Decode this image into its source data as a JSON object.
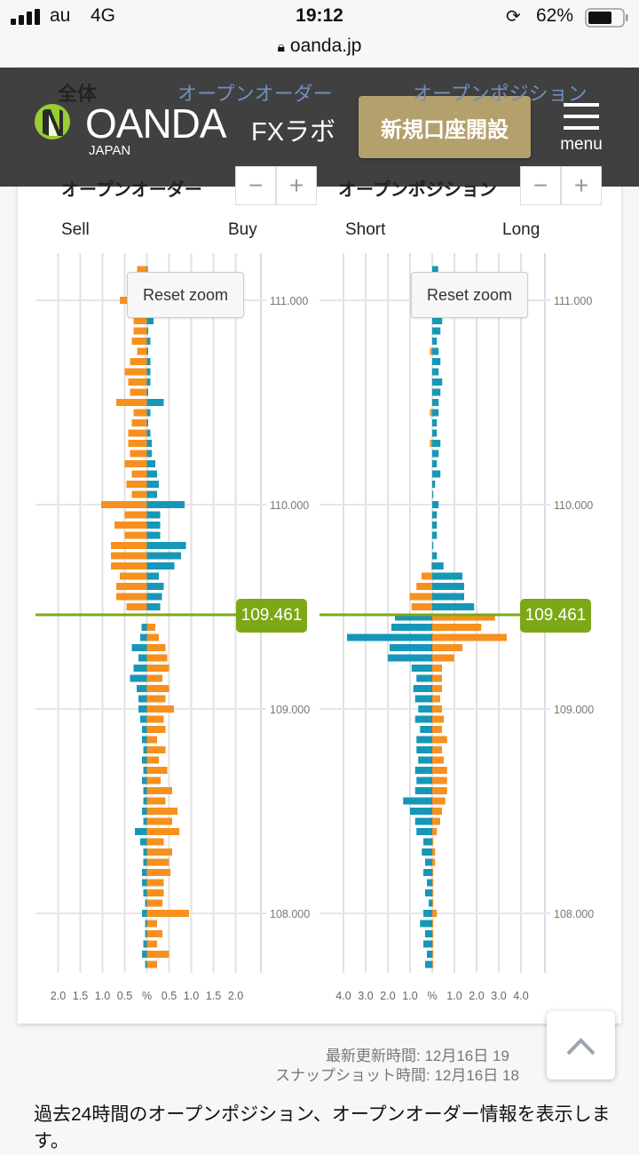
{
  "status_bar": {
    "carrier": "au",
    "network": "4G",
    "time": "19:12",
    "battery": "62%",
    "url": "oanda.jp"
  },
  "tabs": [
    "全体",
    "オープンオーダー",
    "オープンポジション"
  ],
  "header": {
    "logo": "OANDA",
    "logo_sub": "JAPAN",
    "site": "FXラボ",
    "signup_label": "新規口座開設",
    "menu_label": "menu"
  },
  "sections": {
    "orders": {
      "title": "オープンオーダー",
      "left_label": "Sell",
      "right_label": "Buy",
      "zoom_out": "−",
      "zoom_in": "+",
      "reset": "Reset zoom"
    },
    "positions": {
      "title": "オープンポジション",
      "left_label": "Short",
      "right_label": "Long",
      "zoom_out": "−",
      "zoom_in": "+",
      "reset": "Reset zoom"
    }
  },
  "current_price": "109.461",
  "colors": {
    "orange": "#f7901e",
    "blue": "#1797b7",
    "price_line": "#7ca817"
  },
  "chart_data": [
    {
      "type": "bar",
      "orientation": "horizontal-diverging",
      "current_price": 109.461,
      "ylim": [
        107.75,
        111.15
      ],
      "yticks": [
        111.0,
        110.0,
        109.0,
        108.0
      ],
      "ytick_labels": [
        "111.000",
        "110.000",
        "109.000",
        "108.000"
      ],
      "xlim": [
        -2.0,
        2.0
      ],
      "xtick_labels": [
        "2.0",
        "1.5",
        "1.0",
        "0.5",
        "%",
        "0.5",
        "1.0",
        "1.5",
        "2.0"
      ],
      "grid": true,
      "prices": [
        111.15,
        111.1,
        111.05,
        111.0,
        110.95,
        110.9,
        110.85,
        110.8,
        110.75,
        110.7,
        110.65,
        110.6,
        110.55,
        110.5,
        110.45,
        110.4,
        110.35,
        110.3,
        110.25,
        110.2,
        110.15,
        110.1,
        110.05,
        110.0,
        109.95,
        109.9,
        109.85,
        109.8,
        109.75,
        109.7,
        109.65,
        109.6,
        109.55,
        109.5,
        109.45,
        109.4,
        109.35,
        109.3,
        109.25,
        109.2,
        109.15,
        109.1,
        109.05,
        109.0,
        108.95,
        108.9,
        108.85,
        108.8,
        108.75,
        108.7,
        108.65,
        108.6,
        108.55,
        108.5,
        108.45,
        108.4,
        108.35,
        108.3,
        108.25,
        108.2,
        108.15,
        108.1,
        108.05,
        108.0,
        107.95,
        107.9,
        107.85,
        107.8,
        107.75
      ],
      "series": [
        {
          "name": "Sell",
          "side": "left",
          "values": [
            0.22,
            0.2,
            0.15,
            0.61,
            0.3,
            0.3,
            0.3,
            0.34,
            0.22,
            0.38,
            0.5,
            0.42,
            0.38,
            0.69,
            0.3,
            0.34,
            0.42,
            0.42,
            0.38,
            0.5,
            0.34,
            0.46,
            0.34,
            1.03,
            0.5,
            0.73,
            0.5,
            0.81,
            0.81,
            0.81,
            0.61,
            0.69,
            0.69,
            0.46,
            0,
            0.12,
            0.15,
            0.34,
            0.19,
            0.3,
            0.38,
            0.23,
            0.19,
            0.19,
            0.15,
            0.11,
            0.11,
            0.08,
            0.11,
            0.08,
            0.11,
            0.08,
            0.08,
            0.11,
            0.08,
            0.27,
            0.15,
            0.08,
            0.08,
            0.11,
            0.11,
            0.08,
            0.04,
            0.11,
            0.04,
            0.04,
            0.08,
            0.11,
            0.04
          ]
        },
        {
          "name": "Buy",
          "side": "right",
          "values": [
            0.02,
            0.03,
            0.03,
            0.03,
            0.05,
            0.15,
            0.03,
            0.08,
            0.03,
            0.08,
            0.08,
            0.08,
            0.03,
            0.38,
            0.08,
            0.03,
            0.08,
            0.11,
            0.11,
            0.19,
            0.23,
            0.27,
            0.23,
            0.85,
            0.3,
            0.3,
            0.3,
            0.88,
            0.77,
            0.62,
            0.27,
            0.38,
            0.34,
            0.3,
            0,
            0.19,
            0.27,
            0.42,
            0.46,
            0.5,
            0.35,
            0.5,
            0.42,
            0.61,
            0.38,
            0.42,
            0.23,
            0.42,
            0.27,
            0.46,
            0.31,
            0.57,
            0.42,
            0.69,
            0.57,
            0.73,
            0.38,
            0.57,
            0.5,
            0.53,
            0.38,
            0.38,
            0.35,
            0.95,
            0.23,
            0.35,
            0.23,
            0.5,
            0.23
          ]
        }
      ]
    },
    {
      "type": "bar",
      "orientation": "horizontal-diverging",
      "current_price": 109.461,
      "ylim": [
        107.75,
        111.15
      ],
      "yticks": [
        111.0,
        110.0,
        109.0,
        108.0
      ],
      "ytick_labels": [
        "111.000",
        "110.000",
        "109.000",
        "108.000"
      ],
      "xlim": [
        -4.0,
        4.0
      ],
      "xtick_labels": [
        "4.0",
        "3.0",
        "2.0",
        "1.0",
        "%",
        "1.0",
        "2.0",
        "3.0",
        "4.0"
      ],
      "grid": true,
      "prices": [
        111.15,
        111.1,
        111.05,
        111.0,
        110.95,
        110.9,
        110.85,
        110.8,
        110.75,
        110.7,
        110.65,
        110.6,
        110.55,
        110.5,
        110.45,
        110.4,
        110.35,
        110.3,
        110.25,
        110.2,
        110.15,
        110.1,
        110.05,
        110.0,
        109.95,
        109.9,
        109.85,
        109.8,
        109.75,
        109.7,
        109.65,
        109.6,
        109.55,
        109.5,
        109.45,
        109.4,
        109.35,
        109.3,
        109.25,
        109.2,
        109.15,
        109.1,
        109.05,
        109.0,
        108.95,
        108.9,
        108.85,
        108.8,
        108.75,
        108.7,
        108.65,
        108.6,
        108.55,
        108.5,
        108.45,
        108.4,
        108.35,
        108.3,
        108.25,
        108.2,
        108.15,
        108.1,
        108.05,
        108.0,
        107.95,
        107.9,
        107.85,
        107.8,
        107.75
      ],
      "series": [
        {
          "name": "Short",
          "side": "left",
          "values": [
            0,
            0,
            0,
            0,
            0,
            0,
            0,
            0,
            0.1,
            0,
            0,
            0,
            0,
            0,
            0.1,
            0,
            0,
            0.1,
            0,
            0,
            0,
            0,
            0,
            0,
            0,
            0,
            0,
            0,
            0,
            0.04,
            0.48,
            0.71,
            1.01,
            0.93,
            1.68,
            1.84,
            3.84,
            1.92,
            2.0,
            0.93,
            0.71,
            0.85,
            0.77,
            0.63,
            0.77,
            0.55,
            0.71,
            0.71,
            0.63,
            0.77,
            0.71,
            0.77,
            1.31,
            1.0,
            0.77,
            0.71,
            0.4,
            0.47,
            0.32,
            0.4,
            0.24,
            0.32,
            0.16,
            0.4,
            0.55,
            0.32,
            0.4,
            0.24,
            0.32
          ]
        },
        {
          "name": "Long",
          "side": "right",
          "values": [
            0.27,
            0.3,
            0.2,
            0.3,
            0.4,
            0.45,
            0.37,
            0.21,
            0.29,
            0.37,
            0.29,
            0.45,
            0.37,
            0.29,
            0.29,
            0.21,
            0.21,
            0.37,
            0.29,
            0.21,
            0.37,
            0.13,
            0.05,
            0.29,
            0.21,
            0.21,
            0.21,
            0.05,
            0.21,
            0.51,
            1.36,
            1.44,
            1.44,
            1.89,
            2.83,
            2.21,
            3.36,
            1.36,
            0.99,
            0.44,
            0.44,
            0.44,
            0.36,
            0.44,
            0.52,
            0.44,
            0.67,
            0.44,
            0.52,
            0.67,
            0.67,
            0.67,
            0.59,
            0.44,
            0.36,
            0.21,
            0.05,
            0.13,
            0.13,
            0.05,
            0.05,
            0.05,
            0.05,
            0.21,
            0.05,
            0.05,
            0.05,
            0.05,
            0.05
          ]
        }
      ]
    }
  ],
  "footer": {
    "updated": "最新更新時間: 12月16日 19",
    "snapshot": "スナップショット時間: 12月16日 18",
    "description": "過去24時間のオープンポジション、オープンオーダー情報を表示します。"
  }
}
